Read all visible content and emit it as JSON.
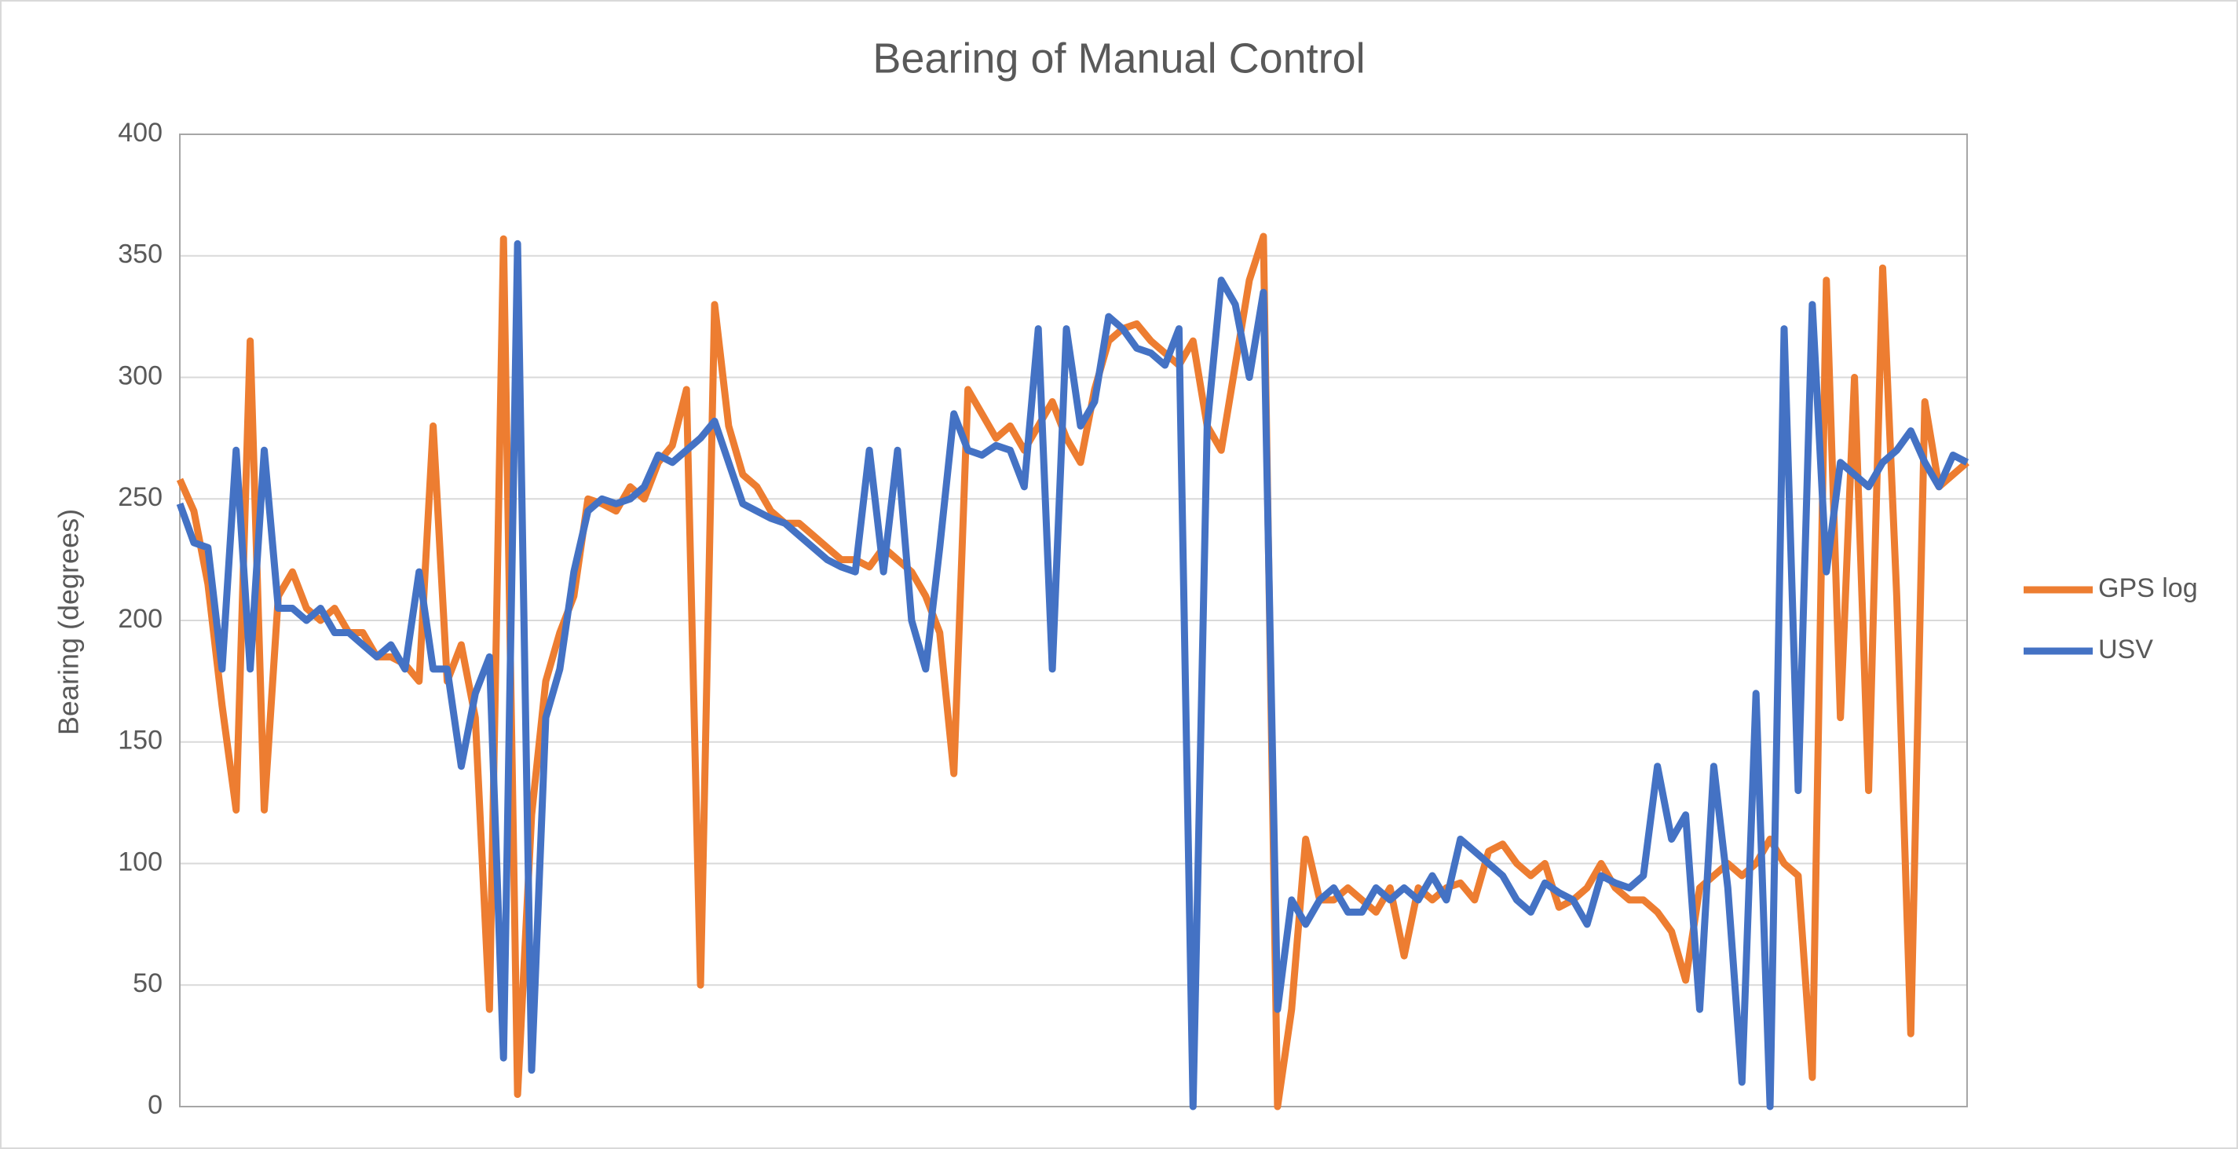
{
  "chart_data": {
    "type": "line",
    "title": "Bearing of Manual Control",
    "y_label": "Bearing (degrees)",
    "categories": [
      null,
      null,
      null,
      null,
      null,
      null,
      null,
      null,
      null,
      null,
      null,
      null,
      null,
      null,
      null,
      null,
      null,
      null,
      null,
      null,
      null,
      null,
      null,
      null,
      null,
      null,
      null,
      null,
      null,
      null,
      null,
      null,
      null,
      null,
      null,
      null,
      null,
      null,
      null,
      null,
      null,
      null,
      null,
      null,
      null,
      null,
      null,
      null,
      null,
      null,
      null,
      null,
      null,
      null,
      null,
      null,
      null,
      null,
      null,
      null,
      null,
      null,
      null,
      null,
      null,
      null,
      null,
      null,
      null,
      null,
      null,
      null,
      null,
      null,
      null,
      null,
      null,
      null,
      null,
      null,
      null,
      null,
      null,
      null,
      null,
      null,
      null,
      null,
      null,
      null,
      null,
      null,
      null,
      null,
      null,
      null,
      null,
      null,
      null,
      null,
      null,
      null,
      null,
      null,
      null,
      null,
      null,
      null,
      null,
      null,
      null,
      null,
      null,
      null,
      null,
      null,
      null,
      null,
      null,
      null,
      null,
      null,
      null,
      null,
      null,
      null,
      null,
      null
    ],
    "series": [
      {
        "name": "GPS log",
        "color": "#ed7d31",
        "values": [
          258,
          245,
          215,
          165,
          122,
          315,
          122,
          210,
          220,
          205,
          200,
          205,
          195,
          195,
          185,
          185,
          182,
          175,
          280,
          175,
          190,
          160,
          40,
          357,
          5,
          120,
          175,
          195,
          210,
          250,
          248,
          245,
          255,
          250,
          265,
          272,
          295,
          50,
          330,
          280,
          260,
          255,
          245,
          240,
          240,
          235,
          230,
          225,
          225,
          222,
          230,
          225,
          220,
          210,
          195,
          137,
          295,
          285,
          275,
          280,
          270,
          280,
          290,
          275,
          265,
          295,
          315,
          320,
          322,
          315,
          310,
          305,
          315,
          280,
          270,
          305,
          340,
          358,
          0,
          40,
          110,
          85,
          85,
          90,
          85,
          80,
          90,
          62,
          90,
          85,
          90,
          92,
          85,
          105,
          108,
          100,
          95,
          100,
          82,
          85,
          90,
          100,
          90,
          85,
          85,
          80,
          72,
          52,
          90,
          95,
          100,
          95,
          100,
          110,
          100,
          95,
          12,
          340,
          160,
          300,
          130,
          345,
          210,
          30,
          290,
          255,
          260,
          265
        ]
      },
      {
        "name": "USV",
        "color": "#4472c4",
        "values": [
          248,
          232,
          230,
          180,
          270,
          180,
          270,
          205,
          205,
          200,
          205,
          195,
          195,
          190,
          185,
          190,
          180,
          220,
          180,
          180,
          140,
          170,
          185,
          20,
          355,
          15,
          160,
          180,
          220,
          245,
          250,
          248,
          250,
          255,
          268,
          265,
          270,
          275,
          282,
          265,
          248,
          245,
          242,
          240,
          235,
          230,
          225,
          222,
          220,
          270,
          220,
          270,
          200,
          180,
          230,
          285,
          270,
          268,
          272,
          270,
          255,
          320,
          180,
          320,
          280,
          290,
          325,
          320,
          312,
          310,
          305,
          320,
          0,
          280,
          340,
          330,
          300,
          335,
          40,
          85,
          75,
          85,
          90,
          80,
          80,
          90,
          85,
          90,
          85,
          95,
          85,
          110,
          105,
          100,
          95,
          85,
          80,
          92,
          88,
          85,
          75,
          95,
          92,
          90,
          95,
          140,
          110,
          120,
          40,
          140,
          90,
          10,
          170,
          0,
          320,
          130,
          330,
          220,
          265,
          260,
          255,
          265,
          270,
          278,
          265,
          255,
          268,
          265
        ]
      }
    ],
    "ylim": [
      0,
      400
    ],
    "yticks": [
      0,
      50,
      100,
      150,
      200,
      250,
      300,
      350,
      400
    ],
    "grid": true,
    "legend": "right"
  }
}
